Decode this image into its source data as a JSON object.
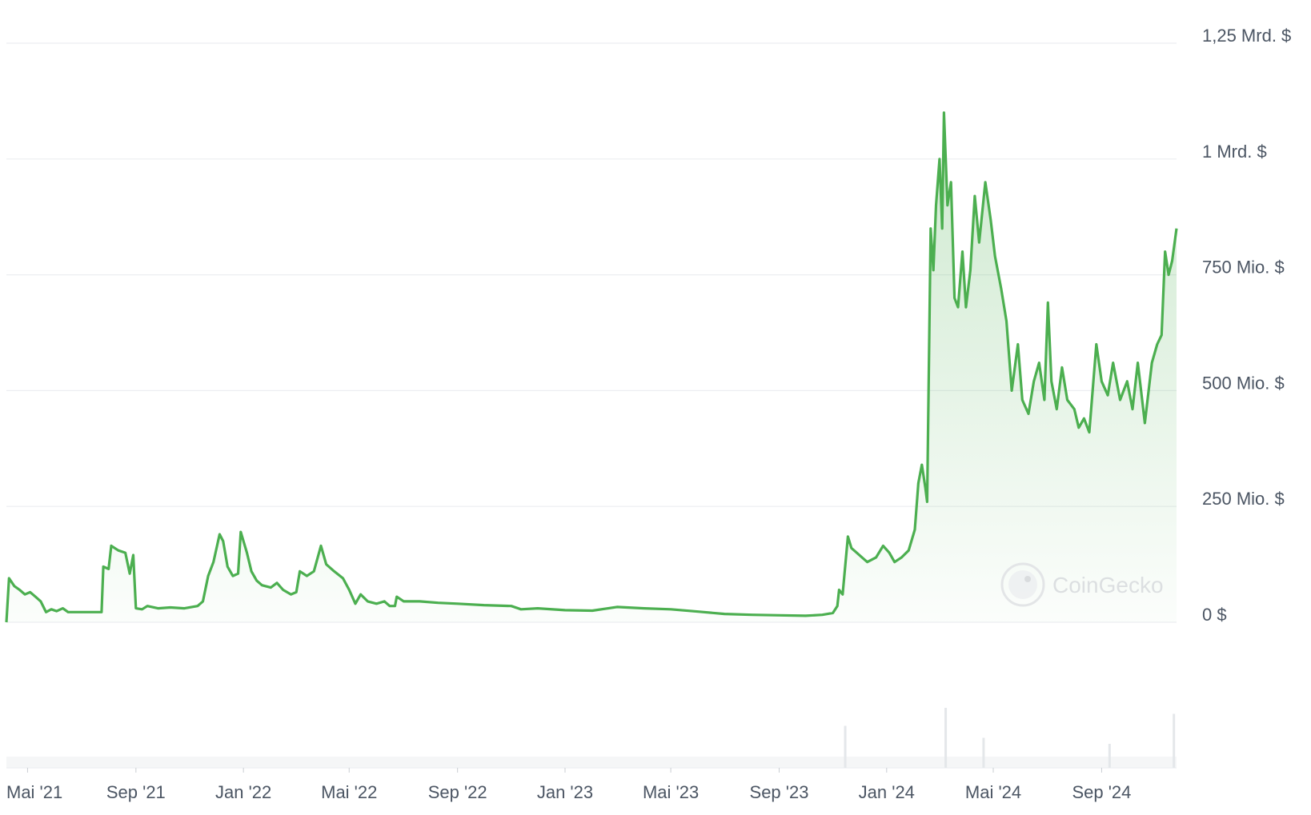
{
  "chart_data": {
    "type": "area",
    "title": "",
    "xlabel": "",
    "ylabel": "",
    "y_unit": "Mio. $",
    "ylim": [
      0,
      1250
    ],
    "y_ticks": [
      {
        "value": 0,
        "label": "0 $"
      },
      {
        "value": 250,
        "label": "250 Mio. $"
      },
      {
        "value": 500,
        "label": "500 Mio. $"
      },
      {
        "value": 750,
        "label": "750 Mio. $"
      },
      {
        "value": 1000,
        "label": "1 Mrd. $"
      },
      {
        "value": 1250,
        "label": "1,25 Mrd. $"
      }
    ],
    "x_range": [
      "2021-04-07",
      "2024-11-25"
    ],
    "x_ticks": [
      {
        "date": "2021-05-01",
        "label": "Mai '21"
      },
      {
        "date": "2021-09-01",
        "label": "Sep '21"
      },
      {
        "date": "2022-01-01",
        "label": "Jan '22"
      },
      {
        "date": "2022-05-01",
        "label": "Mai '22"
      },
      {
        "date": "2022-09-01",
        "label": "Sep '22"
      },
      {
        "date": "2023-01-01",
        "label": "Jan '23"
      },
      {
        "date": "2023-05-01",
        "label": "Mai '23"
      },
      {
        "date": "2023-09-01",
        "label": "Sep '23"
      },
      {
        "date": "2024-01-01",
        "label": "Jan '24"
      },
      {
        "date": "2024-05-01",
        "label": "Mai '24"
      },
      {
        "date": "2024-09-01",
        "label": "Sep '24"
      }
    ],
    "grid": true,
    "legend": "none",
    "series": [
      {
        "color": "#4caf50",
        "points": [
          [
            "2021-04-07",
            0
          ],
          [
            "2021-04-10",
            95
          ],
          [
            "2021-04-16",
            78
          ],
          [
            "2021-04-22",
            70
          ],
          [
            "2021-04-28",
            60
          ],
          [
            "2021-05-04",
            65
          ],
          [
            "2021-05-10",
            55
          ],
          [
            "2021-05-16",
            45
          ],
          [
            "2021-05-22",
            22
          ],
          [
            "2021-05-28",
            28
          ],
          [
            "2021-06-03",
            24
          ],
          [
            "2021-06-10",
            30
          ],
          [
            "2021-06-16",
            22
          ],
          [
            "2021-06-24",
            22
          ],
          [
            "2021-07-10",
            22
          ],
          [
            "2021-07-24",
            22
          ],
          [
            "2021-07-26",
            120
          ],
          [
            "2021-08-01",
            115
          ],
          [
            "2021-08-04",
            165
          ],
          [
            "2021-08-12",
            155
          ],
          [
            "2021-08-20",
            150
          ],
          [
            "2021-08-25",
            105
          ],
          [
            "2021-08-29",
            145
          ],
          [
            "2021-09-01",
            30
          ],
          [
            "2021-09-08",
            28
          ],
          [
            "2021-09-14",
            35
          ],
          [
            "2021-09-26",
            30
          ],
          [
            "2021-10-10",
            32
          ],
          [
            "2021-10-26",
            30
          ],
          [
            "2021-11-10",
            35
          ],
          [
            "2021-11-16",
            45
          ],
          [
            "2021-11-22",
            100
          ],
          [
            "2021-11-28",
            130
          ],
          [
            "2021-12-05",
            190
          ],
          [
            "2021-12-09",
            175
          ],
          [
            "2021-12-14",
            120
          ],
          [
            "2021-12-20",
            100
          ],
          [
            "2021-12-26",
            105
          ],
          [
            "2021-12-29",
            195
          ],
          [
            "2022-01-05",
            150
          ],
          [
            "2022-01-10",
            110
          ],
          [
            "2022-01-16",
            90
          ],
          [
            "2022-01-22",
            80
          ],
          [
            "2022-02-01",
            75
          ],
          [
            "2022-02-08",
            85
          ],
          [
            "2022-02-15",
            70
          ],
          [
            "2022-02-24",
            60
          ],
          [
            "2022-03-02",
            65
          ],
          [
            "2022-03-06",
            110
          ],
          [
            "2022-03-14",
            100
          ],
          [
            "2022-03-22",
            110
          ],
          [
            "2022-03-30",
            165
          ],
          [
            "2022-04-05",
            125
          ],
          [
            "2022-04-14",
            110
          ],
          [
            "2022-04-24",
            95
          ],
          [
            "2022-05-01",
            70
          ],
          [
            "2022-05-08",
            40
          ],
          [
            "2022-05-14",
            60
          ],
          [
            "2022-05-22",
            45
          ],
          [
            "2022-06-01",
            40
          ],
          [
            "2022-06-10",
            45
          ],
          [
            "2022-06-16",
            35
          ],
          [
            "2022-06-22",
            35
          ],
          [
            "2022-06-24",
            55
          ],
          [
            "2022-07-02",
            45
          ],
          [
            "2022-07-20",
            45
          ],
          [
            "2022-08-10",
            42
          ],
          [
            "2022-09-01",
            40
          ],
          [
            "2022-10-01",
            37
          ],
          [
            "2022-11-01",
            35
          ],
          [
            "2022-11-12",
            28
          ],
          [
            "2022-12-01",
            30
          ],
          [
            "2023-01-01",
            26
          ],
          [
            "2023-02-01",
            25
          ],
          [
            "2023-03-01",
            33
          ],
          [
            "2023-04-01",
            30
          ],
          [
            "2023-05-01",
            28
          ],
          [
            "2023-06-01",
            23
          ],
          [
            "2023-07-01",
            18
          ],
          [
            "2023-08-01",
            16
          ],
          [
            "2023-09-01",
            15
          ],
          [
            "2023-10-01",
            14
          ],
          [
            "2023-10-20",
            16
          ],
          [
            "2023-11-01",
            20
          ],
          [
            "2023-11-06",
            35
          ],
          [
            "2023-11-08",
            70
          ],
          [
            "2023-11-12",
            60
          ],
          [
            "2023-11-18",
            185
          ],
          [
            "2023-11-22",
            160
          ],
          [
            "2023-11-28",
            150
          ],
          [
            "2023-12-04",
            140
          ],
          [
            "2023-12-10",
            130
          ],
          [
            "2023-12-20",
            140
          ],
          [
            "2023-12-28",
            165
          ],
          [
            "2024-01-04",
            150
          ],
          [
            "2024-01-10",
            130
          ],
          [
            "2024-01-18",
            140
          ],
          [
            "2024-01-26",
            155
          ],
          [
            "2024-02-02",
            200
          ],
          [
            "2024-02-06",
            300
          ],
          [
            "2024-02-10",
            340
          ],
          [
            "2024-02-14",
            290
          ],
          [
            "2024-02-16",
            260
          ],
          [
            "2024-02-20",
            850
          ],
          [
            "2024-02-23",
            760
          ],
          [
            "2024-02-26",
            900
          ],
          [
            "2024-03-01",
            1000
          ],
          [
            "2024-03-04",
            850
          ],
          [
            "2024-03-06",
            1100
          ],
          [
            "2024-03-10",
            900
          ],
          [
            "2024-03-14",
            950
          ],
          [
            "2024-03-18",
            700
          ],
          [
            "2024-03-22",
            680
          ],
          [
            "2024-03-27",
            800
          ],
          [
            "2024-03-31",
            680
          ],
          [
            "2024-04-05",
            760
          ],
          [
            "2024-04-10",
            920
          ],
          [
            "2024-04-15",
            820
          ],
          [
            "2024-04-22",
            950
          ],
          [
            "2024-04-28",
            870
          ],
          [
            "2024-05-03",
            790
          ],
          [
            "2024-05-10",
            720
          ],
          [
            "2024-05-16",
            650
          ],
          [
            "2024-05-22",
            500
          ],
          [
            "2024-05-29",
            600
          ],
          [
            "2024-06-03",
            480
          ],
          [
            "2024-06-10",
            450
          ],
          [
            "2024-06-16",
            520
          ],
          [
            "2024-06-22",
            560
          ],
          [
            "2024-06-28",
            480
          ],
          [
            "2024-07-02",
            690
          ],
          [
            "2024-07-06",
            520
          ],
          [
            "2024-07-12",
            460
          ],
          [
            "2024-07-18",
            550
          ],
          [
            "2024-07-24",
            480
          ],
          [
            "2024-08-01",
            460
          ],
          [
            "2024-08-06",
            420
          ],
          [
            "2024-08-12",
            440
          ],
          [
            "2024-08-18",
            410
          ],
          [
            "2024-08-26",
            600
          ],
          [
            "2024-09-01",
            520
          ],
          [
            "2024-09-08",
            490
          ],
          [
            "2024-09-14",
            560
          ],
          [
            "2024-09-22",
            480
          ],
          [
            "2024-09-30",
            520
          ],
          [
            "2024-10-06",
            460
          ],
          [
            "2024-10-12",
            560
          ],
          [
            "2024-10-20",
            430
          ],
          [
            "2024-10-28",
            560
          ],
          [
            "2024-11-03",
            600
          ],
          [
            "2024-11-08",
            620
          ],
          [
            "2024-11-12",
            800
          ],
          [
            "2024-11-16",
            750
          ],
          [
            "2024-11-20",
            780
          ],
          [
            "2024-11-25",
            850
          ]
        ]
      }
    ],
    "volume": [
      {
        "date": "2023-11-15",
        "value": 0.35
      },
      {
        "date": "2024-03-08",
        "value": 0.5
      },
      {
        "date": "2024-04-20",
        "value": 0.25
      },
      {
        "date": "2024-09-10",
        "value": 0.2
      },
      {
        "date": "2024-11-22",
        "value": 0.45
      }
    ]
  },
  "watermark": {
    "text": "CoinGecko",
    "icon": "gecko-logo-icon"
  }
}
